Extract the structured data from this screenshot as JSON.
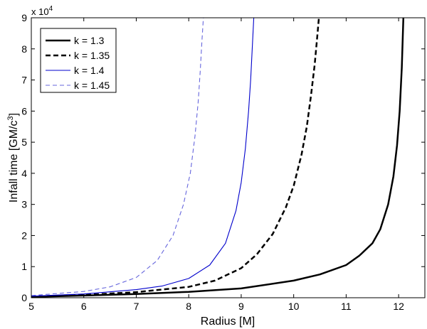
{
  "chart_data": {
    "type": "line",
    "xlabel": "Radius [M]",
    "ylabel": "Infall time [GM/c",
    "ylabel_sup": "3",
    "ylabel_end": "]",
    "y_multiplier": "x 10",
    "y_multiplier_exp": "4",
    "xlim": [
      5,
      12.5
    ],
    "ylim": [
      0,
      9
    ],
    "xticks": [
      5,
      6,
      7,
      8,
      9,
      10,
      11,
      12
    ],
    "yticks": [
      0,
      1,
      2,
      3,
      4,
      5,
      6,
      7,
      8,
      9
    ],
    "grid": false,
    "legend_position": "top-left",
    "series": [
      {
        "name": "k = 1.3",
        "color": "#000000",
        "style": "solid",
        "width": "thick",
        "x": [
          5,
          6,
          7,
          8,
          9,
          10,
          10.5,
          11,
          11.25,
          11.5,
          11.65,
          11.8,
          11.9,
          11.97,
          12.02,
          12.06,
          12.09
        ],
        "y": [
          0.03,
          0.07,
          0.12,
          0.19,
          0.3,
          0.55,
          0.75,
          1.05,
          1.35,
          1.75,
          2.2,
          3.0,
          3.9,
          4.9,
          6.0,
          7.4,
          9.0
        ]
      },
      {
        "name": "k = 1.35",
        "color": "#000000",
        "style": "dashed",
        "width": "thick",
        "x": [
          5,
          6,
          7,
          8,
          8.5,
          9,
          9.3,
          9.6,
          9.85,
          10.0,
          10.15,
          10.25,
          10.33,
          10.4,
          10.45,
          10.48
        ],
        "y": [
          0.04,
          0.09,
          0.18,
          0.35,
          0.55,
          0.95,
          1.4,
          2.05,
          2.9,
          3.6,
          4.6,
          5.5,
          6.5,
          7.5,
          8.4,
          9.0
        ]
      },
      {
        "name": "k = 1.4",
        "color": "#0000cc",
        "style": "solid",
        "width": "thin",
        "x": [
          5,
          6,
          7,
          7.5,
          8,
          8.4,
          8.7,
          8.9,
          9.0,
          9.08,
          9.14,
          9.18,
          9.21,
          9.24
        ],
        "y": [
          0.05,
          0.12,
          0.26,
          0.38,
          0.62,
          1.05,
          1.75,
          2.8,
          3.7,
          4.8,
          6.0,
          7.0,
          8.0,
          9.0
        ]
      },
      {
        "name": "k = 1.45",
        "color": "#6666dd",
        "style": "dashed",
        "width": "thin",
        "x": [
          5,
          6,
          6.5,
          7,
          7.4,
          7.7,
          7.9,
          8.03,
          8.12,
          8.18,
          8.22,
          8.25,
          8.28
        ],
        "y": [
          0.07,
          0.2,
          0.35,
          0.65,
          1.2,
          2.0,
          3.0,
          4.0,
          5.2,
          6.3,
          7.3,
          8.2,
          9.0
        ]
      }
    ]
  }
}
